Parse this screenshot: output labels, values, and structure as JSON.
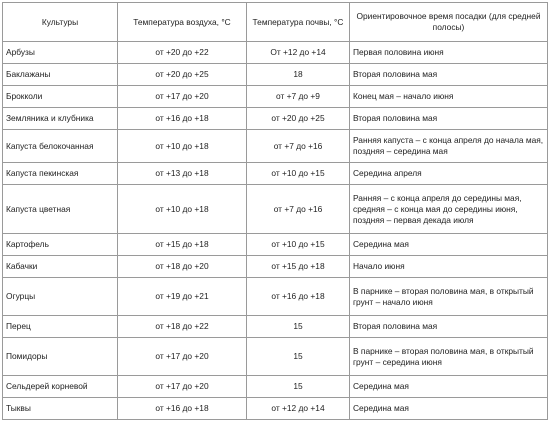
{
  "table": {
    "headers": [
      "Культуры",
      "Температура воздуха, °С",
      "Температура почвы, °С",
      "Ориентировочное время посадки (для средней полосы)"
    ],
    "rows": [
      [
        "Арбузы",
        "от +20 до +22",
        "От +12 до +14",
        "Первая половина июня"
      ],
      [
        "Баклажаны",
        "от +20 до +25",
        "18",
        "Вторая половина мая"
      ],
      [
        "Брокколи",
        "от +17 до +20",
        "от +7 до +9",
        "Конец мая – начало июня"
      ],
      [
        "Земляника и клубника",
        "от +16 до +18",
        "от +20 до +25",
        "Вторая половина мая"
      ],
      [
        "Капуста белокочанная",
        "от +10 до +18",
        "от +7 до +16",
        "Ранняя капуста – с конца апреля до начала мая, поздняя – середина мая"
      ],
      [
        "Капуста пекинская",
        "от +13 до +18",
        "от +10 до +15",
        "Середина апреля"
      ],
      [
        "Капуста цветная",
        "от +10 до +18",
        "от +7 до +16",
        "Ранняя – с конца апреля до середины мая, средняя – с конца мая до середины июня, поздняя – первая декада июля"
      ],
      [
        "Картофель",
        "от +15 до +18",
        "от +10 до +15",
        "Середина мая"
      ],
      [
        "Кабачки",
        "от +18 до +20",
        "от +15 до +18",
        "Начало июня"
      ],
      [
        "Огурцы",
        "от +19 до +21",
        "от +16 до +18",
        "В парнике – вторая половина мая, в открытый грунт – начало июня"
      ],
      [
        "Перец",
        "от +18 до +22",
        "15",
        "Вторая половина мая"
      ],
      [
        "Помидоры",
        "от +17 до +20",
        "15",
        "В парнике – вторая половина мая, в открытый грунт – середина июня"
      ],
      [
        "Сельдерей корневой",
        "от +17 до +20",
        "15",
        "Середина мая"
      ],
      [
        "Тыквы",
        "от +16 до +18",
        "от +12 до +14",
        "Середина мая"
      ]
    ]
  }
}
